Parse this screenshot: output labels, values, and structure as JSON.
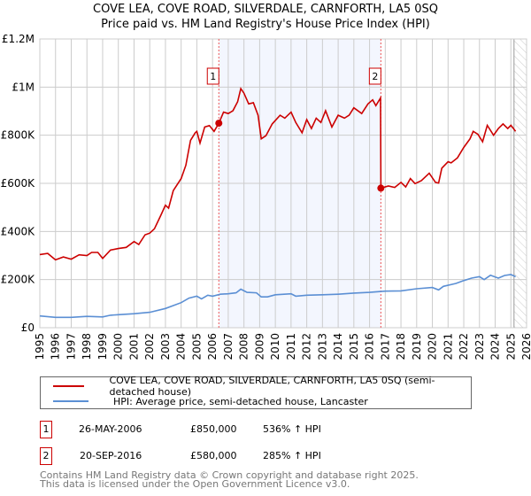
{
  "chart_data": {
    "type": "line",
    "title": "COVE LEA, COVE ROAD, SILVERDALE, CARNFORTH, LA5 0SQ",
    "subtitle": "Price paid vs. HM Land Registry's House Price Index (HPI)",
    "xlim": [
      1995,
      2026
    ],
    "ylim": [
      0,
      1200000
    ],
    "y_ticks": [
      {
        "v": 0,
        "label": "£0"
      },
      {
        "v": 200000,
        "label": "£200K"
      },
      {
        "v": 400000,
        "label": "£400K"
      },
      {
        "v": 600000,
        "label": "£600K"
      },
      {
        "v": 800000,
        "label": "£800K"
      },
      {
        "v": 1000000,
        "label": "£1M"
      },
      {
        "v": 1200000,
        "label": "£1.2M"
      }
    ],
    "x_ticks": [
      "1995",
      "1996",
      "1997",
      "1998",
      "1999",
      "2000",
      "2001",
      "2002",
      "2003",
      "2004",
      "2005",
      "2006",
      "2007",
      "2008",
      "2009",
      "2010",
      "2011",
      "2012",
      "2013",
      "2014",
      "2015",
      "2016",
      "2017",
      "2018",
      "2019",
      "2020",
      "2021",
      "2022",
      "2023",
      "2024",
      "2025",
      "2026"
    ],
    "grid": true,
    "shaded_range": [
      2006.4,
      2016.72
    ],
    "forecast_from": 2025.2,
    "series": [
      {
        "name": "COVE LEA, COVE ROAD, SILVERDALE, CARNFORTH, LA5 0SQ (semi-detached house)",
        "color": "#cc0000",
        "points": [
          [
            1995,
            304
          ],
          [
            1995.5,
            309
          ],
          [
            1996,
            282
          ],
          [
            1996.5,
            294
          ],
          [
            1997,
            285
          ],
          [
            1997.5,
            303
          ],
          [
            1998,
            300
          ],
          [
            1998.3,
            313
          ],
          [
            1998.7,
            313
          ],
          [
            1999,
            288
          ],
          [
            1999.5,
            323
          ],
          [
            2000,
            329
          ],
          [
            2000.5,
            334
          ],
          [
            2001,
            358
          ],
          [
            2001.3,
            346
          ],
          [
            2001.7,
            386
          ],
          [
            2002,
            393
          ],
          [
            2002.3,
            411
          ],
          [
            2002.7,
            466
          ],
          [
            2003,
            509
          ],
          [
            2003.2,
            497
          ],
          [
            2003.5,
            570
          ],
          [
            2004,
            620
          ],
          [
            2004.3,
            675
          ],
          [
            2004.6,
            779
          ],
          [
            2004.9,
            810
          ],
          [
            2005,
            816
          ],
          [
            2005.2,
            767
          ],
          [
            2005.5,
            834
          ],
          [
            2005.8,
            840
          ],
          [
            2006.1,
            816
          ],
          [
            2006.4,
            850
          ],
          [
            2006.7,
            896
          ],
          [
            2007,
            890
          ],
          [
            2007.3,
            902
          ],
          [
            2007.6,
            939
          ],
          [
            2007.8,
            994
          ],
          [
            2008,
            975
          ],
          [
            2008.3,
            930
          ],
          [
            2008.6,
            935
          ],
          [
            2008.9,
            883
          ],
          [
            2009.1,
            785
          ],
          [
            2009.4,
            798
          ],
          [
            2009.8,
            847
          ],
          [
            2010.3,
            883
          ],
          [
            2010.6,
            871
          ],
          [
            2011,
            896
          ],
          [
            2011.3,
            853
          ],
          [
            2011.7,
            810
          ],
          [
            2012,
            865
          ],
          [
            2012.3,
            828
          ],
          [
            2012.6,
            871
          ],
          [
            2012.9,
            853
          ],
          [
            2013.2,
            902
          ],
          [
            2013.6,
            834
          ],
          [
            2014,
            883
          ],
          [
            2014.4,
            871
          ],
          [
            2014.7,
            883
          ],
          [
            2015,
            914
          ],
          [
            2015.5,
            890
          ],
          [
            2015.9,
            930
          ],
          [
            2016.2,
            947
          ],
          [
            2016.4,
            923
          ],
          [
            2016.7,
            955
          ],
          [
            2016.72,
            580
          ],
          [
            2017.2,
            589
          ],
          [
            2017.6,
            583
          ],
          [
            2018,
            604
          ],
          [
            2018.3,
            585
          ],
          [
            2018.6,
            620
          ],
          [
            2018.9,
            599
          ],
          [
            2019.3,
            611
          ],
          [
            2019.8,
            642
          ],
          [
            2020.2,
            604
          ],
          [
            2020.4,
            601
          ],
          [
            2020.6,
            663
          ],
          [
            2021,
            690
          ],
          [
            2021.2,
            685
          ],
          [
            2021.6,
            706
          ],
          [
            2022,
            749
          ],
          [
            2022.4,
            785
          ],
          [
            2022.6,
            816
          ],
          [
            2022.9,
            804
          ],
          [
            2023.2,
            773
          ],
          [
            2023.5,
            841
          ],
          [
            2023.9,
            800
          ],
          [
            2024.2,
            828
          ],
          [
            2024.5,
            847
          ],
          [
            2024.8,
            828
          ],
          [
            2025,
            841
          ],
          [
            2025.3,
            816
          ]
        ]
      },
      {
        "name": "HPI: Average price, semi-detached house, Lancaster",
        "color": "#5b8fd4",
        "points": [
          [
            1995,
            49
          ],
          [
            1996,
            43
          ],
          [
            1997,
            43
          ],
          [
            1998,
            47
          ],
          [
            1999,
            45
          ],
          [
            1999.5,
            52
          ],
          [
            2000,
            54
          ],
          [
            2001,
            58
          ],
          [
            2002,
            64
          ],
          [
            2003,
            80
          ],
          [
            2003.5,
            92
          ],
          [
            2004,
            104
          ],
          [
            2004.5,
            123
          ],
          [
            2005,
            131
          ],
          [
            2005.3,
            120
          ],
          [
            2005.7,
            135
          ],
          [
            2006,
            131
          ],
          [
            2006.5,
            139
          ],
          [
            2007,
            141
          ],
          [
            2007.5,
            145
          ],
          [
            2007.8,
            160
          ],
          [
            2008.2,
            147
          ],
          [
            2008.8,
            145
          ],
          [
            2009.1,
            128
          ],
          [
            2009.5,
            128
          ],
          [
            2010,
            137
          ],
          [
            2011,
            141
          ],
          [
            2011.3,
            131
          ],
          [
            2012,
            135
          ],
          [
            2013,
            137
          ],
          [
            2014,
            139
          ],
          [
            2015,
            144
          ],
          [
            2016,
            147
          ],
          [
            2017,
            152
          ],
          [
            2018,
            153
          ],
          [
            2019,
            162
          ],
          [
            2020,
            167
          ],
          [
            2020.4,
            157
          ],
          [
            2020.7,
            172
          ],
          [
            2021.5,
            184
          ],
          [
            2022,
            196
          ],
          [
            2022.5,
            206
          ],
          [
            2023,
            212
          ],
          [
            2023.3,
            200
          ],
          [
            2023.7,
            218
          ],
          [
            2024.2,
            206
          ],
          [
            2024.6,
            217
          ],
          [
            2025,
            221
          ],
          [
            2025.3,
            212
          ]
        ]
      }
    ],
    "point_units": "thousands GBP",
    "sales": [
      {
        "label": "1",
        "date": "26-MAY-2006",
        "price": "£850,000",
        "hpi": "536% ↑ HPI",
        "x": 2006.4,
        "value": 850
      },
      {
        "label": "2",
        "date": "20-SEP-2016",
        "price": "£580,000",
        "hpi": "285% ↑ HPI",
        "x": 2016.72,
        "value": 580
      }
    ]
  },
  "footer": {
    "line1": "Contains HM Land Registry data © Crown copyright and database right 2025.",
    "line2": "This data is licensed under the Open Government Licence v3.0."
  }
}
